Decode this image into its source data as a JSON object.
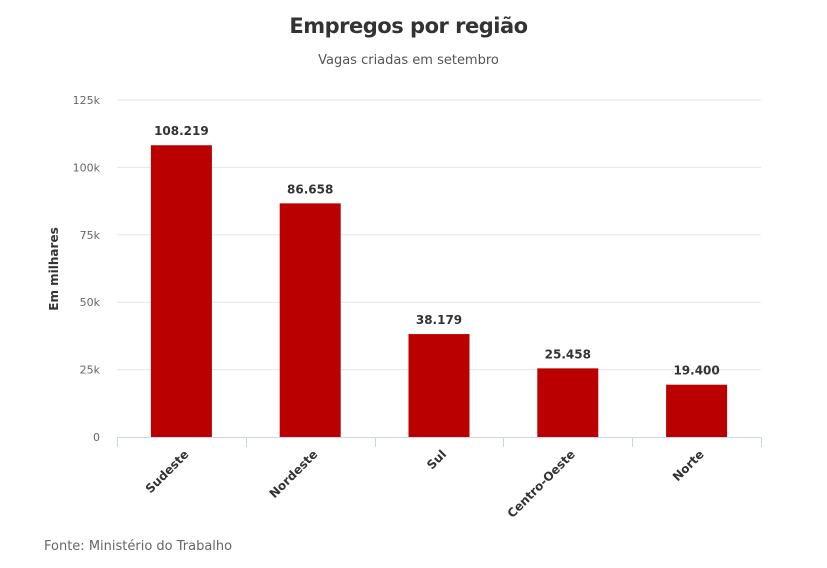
{
  "chart_data": {
    "type": "bar",
    "title": "Empregos por região",
    "subtitle": "Vagas criadas em setembro",
    "xlabel": "",
    "ylabel": "Em milhares",
    "categories": [
      "Sudeste",
      "Nordeste",
      "Sul",
      "Centro-Oeste",
      "Norte"
    ],
    "values": [
      108219,
      86658,
      38179,
      25458,
      19400
    ],
    "data_labels": [
      "108.219",
      "86.658",
      "38.179",
      "25.458",
      "19.400"
    ],
    "ylim": [
      0,
      125000
    ],
    "yticks": [
      0,
      25000,
      50000,
      75000,
      100000,
      125000
    ],
    "ytick_labels": [
      "0",
      "25k",
      "50k",
      "75k",
      "100k",
      "125k"
    ],
    "grid": true,
    "bar_color": "#bb0000",
    "source": "Fonte: Ministério do Trabalho"
  }
}
